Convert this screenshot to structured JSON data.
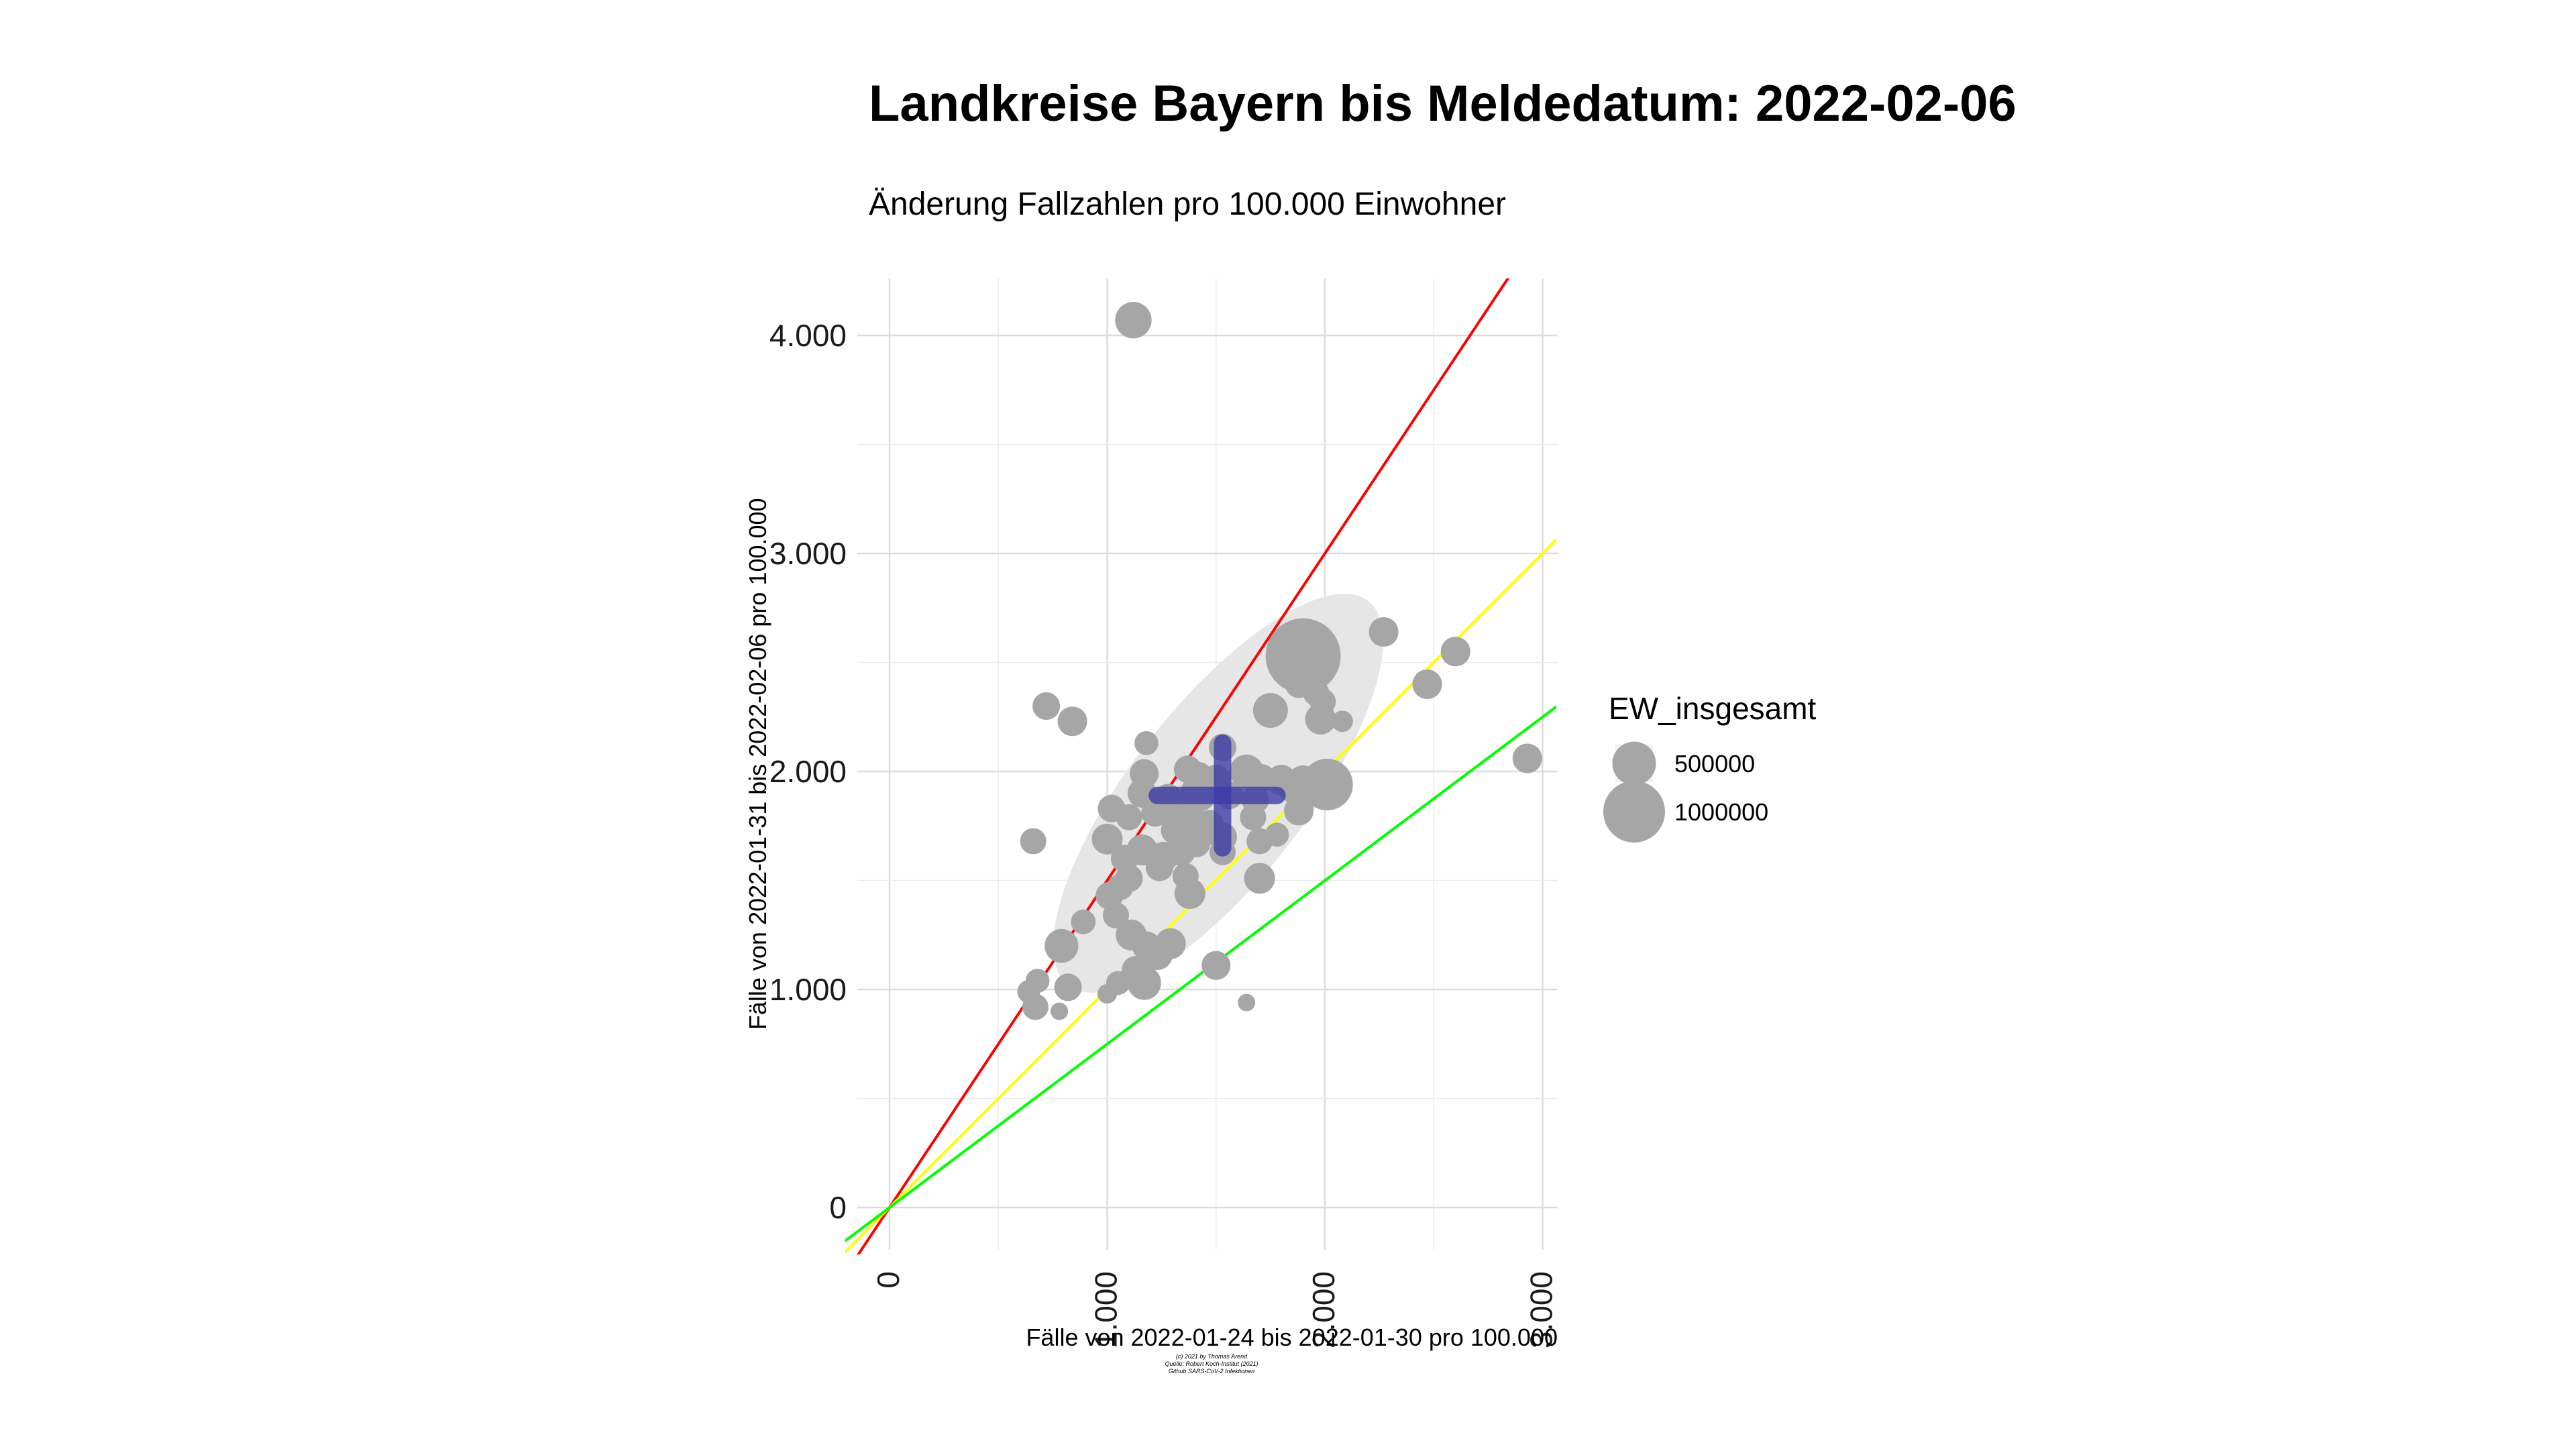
{
  "title": "Landkreise Bayern bis Meldedatum: 2022-02-06",
  "subtitle": "Änderung Fallzahlen pro 100.000 Einwohner",
  "caption": [
    "(c) 2021 by Thomas Arend",
    "Quelle: Robert Koch-Institut (2021)",
    "Github SARS-CoV-2 Infektionen"
  ],
  "colors": {
    "points": "#a6a6a6",
    "ellipse": "#e6e6e6",
    "crosshair": "#3a3aa8",
    "ref_line_red": "#ff0000",
    "ref_line_yellow": "#ffff00",
    "ref_line_green": "#00ff00"
  },
  "chart_data": {
    "type": "scatter",
    "title": "Landkreise Bayern bis Meldedatum: 2022-02-06",
    "subtitle": "Änderung Fallzahlen pro 100.000 Einwohner",
    "xlabel": "Fälle von 2022-01-24 bis 2022-01-30 pro 100.000",
    "ylabel": "Fälle von 2022-01-31 bis 2022-02-06 pro 100.000",
    "xlim": [
      -150,
      3100
    ],
    "ylim": [
      -200,
      4300
    ],
    "x_ticks": [
      0,
      1000,
      2000,
      3000
    ],
    "x_tick_labels": [
      "0",
      "1.000",
      "2.000",
      "3.000"
    ],
    "y_ticks": [
      0,
      1000,
      2000,
      3000,
      4000
    ],
    "y_tick_labels": [
      "0",
      "1.000",
      "2.000",
      "3.000",
      "4.000"
    ],
    "grid": true,
    "legend": {
      "title": "EW_insgesamt",
      "position": "right",
      "entries": [
        {
          "label": "500000",
          "value": 500000
        },
        {
          "label": "1000000",
          "value": 1000000
        }
      ]
    },
    "reference_lines": [
      {
        "color": "red",
        "slope": 1.5
      },
      {
        "color": "yellow",
        "slope": 1.0
      },
      {
        "color": "green",
        "slope": 0.75
      }
    ],
    "ellipse": {
      "center": [
        1510,
        1900
      ],
      "semi_major": 1120,
      "semi_minor": 400,
      "angle_deg": 52
    },
    "crosshair": {
      "x": 1530,
      "y": 1890,
      "x_range": [
        1230,
        1780
      ],
      "y_range": [
        1650,
        2130
      ]
    },
    "points": [
      {
        "x": 1120,
        "y": 4070,
        "ew": 350000
      },
      {
        "x": 720,
        "y": 2300,
        "ew": 200000
      },
      {
        "x": 840,
        "y": 2230,
        "ew": 230000
      },
      {
        "x": 1900,
        "y": 2530,
        "ew": 1480000
      },
      {
        "x": 2270,
        "y": 2640,
        "ew": 230000
      },
      {
        "x": 2600,
        "y": 2550,
        "ew": 230000
      },
      {
        "x": 2470,
        "y": 2400,
        "ew": 230000
      },
      {
        "x": 1880,
        "y": 2400,
        "ew": 200000
      },
      {
        "x": 1960,
        "y": 2360,
        "ew": 180000
      },
      {
        "x": 1990,
        "y": 2320,
        "ew": 180000
      },
      {
        "x": 1750,
        "y": 2280,
        "ew": 320000
      },
      {
        "x": 1980,
        "y": 2240,
        "ew": 250000
      },
      {
        "x": 2080,
        "y": 2230,
        "ew": 120000
      },
      {
        "x": 2930,
        "y": 2060,
        "ew": 230000
      },
      {
        "x": 1180,
        "y": 2130,
        "ew": 150000
      },
      {
        "x": 1530,
        "y": 2110,
        "ew": 200000
      },
      {
        "x": 1370,
        "y": 2010,
        "ew": 200000
      },
      {
        "x": 1170,
        "y": 1990,
        "ew": 220000
      },
      {
        "x": 1420,
        "y": 1980,
        "ew": 200000
      },
      {
        "x": 1500,
        "y": 1960,
        "ew": 250000
      },
      {
        "x": 1640,
        "y": 2000,
        "ew": 300000
      },
      {
        "x": 1710,
        "y": 1970,
        "ew": 200000
      },
      {
        "x": 1800,
        "y": 1960,
        "ew": 250000
      },
      {
        "x": 1900,
        "y": 1950,
        "ew": 300000
      },
      {
        "x": 2010,
        "y": 1940,
        "ew": 700000
      },
      {
        "x": 1850,
        "y": 1920,
        "ew": 200000
      },
      {
        "x": 1950,
        "y": 1920,
        "ew": 250000
      },
      {
        "x": 1160,
        "y": 1900,
        "ew": 220000
      },
      {
        "x": 1280,
        "y": 1880,
        "ew": 200000
      },
      {
        "x": 1420,
        "y": 1900,
        "ew": 350000
      },
      {
        "x": 1560,
        "y": 1890,
        "ew": 200000
      },
      {
        "x": 1680,
        "y": 1870,
        "ew": 200000
      },
      {
        "x": 1020,
        "y": 1830,
        "ew": 200000
      },
      {
        "x": 1100,
        "y": 1790,
        "ew": 180000
      },
      {
        "x": 1220,
        "y": 1810,
        "ew": 200000
      },
      {
        "x": 1330,
        "y": 1790,
        "ew": 250000
      },
      {
        "x": 1390,
        "y": 1770,
        "ew": 250000
      },
      {
        "x": 1470,
        "y": 1760,
        "ew": 200000
      },
      {
        "x": 1670,
        "y": 1790,
        "ew": 180000
      },
      {
        "x": 1880,
        "y": 1820,
        "ew": 230000
      },
      {
        "x": 1310,
        "y": 1730,
        "ew": 200000
      },
      {
        "x": 1360,
        "y": 1690,
        "ew": 200000
      },
      {
        "x": 1410,
        "y": 1670,
        "ew": 200000
      },
      {
        "x": 1530,
        "y": 1700,
        "ew": 220000
      },
      {
        "x": 1700,
        "y": 1680,
        "ew": 180000
      },
      {
        "x": 1780,
        "y": 1710,
        "ew": 150000
      },
      {
        "x": 660,
        "y": 1680,
        "ew": 180000
      },
      {
        "x": 1000,
        "y": 1690,
        "ew": 250000
      },
      {
        "x": 1080,
        "y": 1600,
        "ew": 200000
      },
      {
        "x": 1160,
        "y": 1640,
        "ew": 250000
      },
      {
        "x": 1260,
        "y": 1610,
        "ew": 230000
      },
      {
        "x": 1340,
        "y": 1630,
        "ew": 200000
      },
      {
        "x": 1530,
        "y": 1630,
        "ew": 180000
      },
      {
        "x": 1240,
        "y": 1560,
        "ew": 200000
      },
      {
        "x": 1360,
        "y": 1520,
        "ew": 180000
      },
      {
        "x": 1700,
        "y": 1510,
        "ew": 250000
      },
      {
        "x": 1100,
        "y": 1510,
        "ew": 200000
      },
      {
        "x": 1060,
        "y": 1470,
        "ew": 180000
      },
      {
        "x": 1010,
        "y": 1430,
        "ew": 200000
      },
      {
        "x": 1380,
        "y": 1440,
        "ew": 250000
      },
      {
        "x": 1040,
        "y": 1340,
        "ew": 180000
      },
      {
        "x": 890,
        "y": 1310,
        "ew": 160000
      },
      {
        "x": 1110,
        "y": 1250,
        "ew": 250000
      },
      {
        "x": 1180,
        "y": 1200,
        "ew": 220000
      },
      {
        "x": 1290,
        "y": 1210,
        "ew": 250000
      },
      {
        "x": 790,
        "y": 1200,
        "ew": 300000
      },
      {
        "x": 1230,
        "y": 1160,
        "ew": 250000
      },
      {
        "x": 1130,
        "y": 1090,
        "ew": 200000
      },
      {
        "x": 1500,
        "y": 1110,
        "ew": 220000
      },
      {
        "x": 1050,
        "y": 1030,
        "ew": 150000
      },
      {
        "x": 1170,
        "y": 1030,
        "ew": 300000
      },
      {
        "x": 680,
        "y": 1040,
        "ew": 150000
      },
      {
        "x": 820,
        "y": 1010,
        "ew": 200000
      },
      {
        "x": 640,
        "y": 990,
        "ew": 140000
      },
      {
        "x": 1000,
        "y": 980,
        "ew": 100000
      },
      {
        "x": 670,
        "y": 920,
        "ew": 180000
      },
      {
        "x": 780,
        "y": 900,
        "ew": 80000
      },
      {
        "x": 1640,
        "y": 940,
        "ew": 80000
      }
    ]
  }
}
